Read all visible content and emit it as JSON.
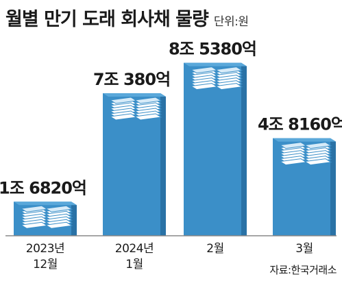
{
  "chart_data": {
    "type": "bar",
    "title": "월별 만기 도래 회사채 물량",
    "unit_label": "단위:원",
    "categories": [
      {
        "line1": "2023년",
        "line2": "12월"
      },
      {
        "line1": "2024년",
        "line2": "1월"
      },
      {
        "line1": "2월",
        "line2": ""
      },
      {
        "line1": "3월",
        "line2": ""
      }
    ],
    "values": [
      16820,
      70380,
      85380,
      48160
    ],
    "value_unit": "억원",
    "data_labels": [
      "1조 6820억",
      "7조 380억",
      "8조 5380억",
      "4조 8160억"
    ],
    "ylim": [
      0,
      90000
    ],
    "grid": false,
    "legend": "none",
    "source": "자료:한국거래소"
  },
  "colors": {
    "bar_front": "#3b8fc8",
    "bar_side": "#2a72a6",
    "bar_top": "#5aa8da",
    "paper_light": "#ffffff",
    "paper_line": "#3b8fc8",
    "baseline": "#888888",
    "text": "#1a1a1a"
  },
  "icons": {
    "bar_decoration": "paper-stack-icon"
  }
}
